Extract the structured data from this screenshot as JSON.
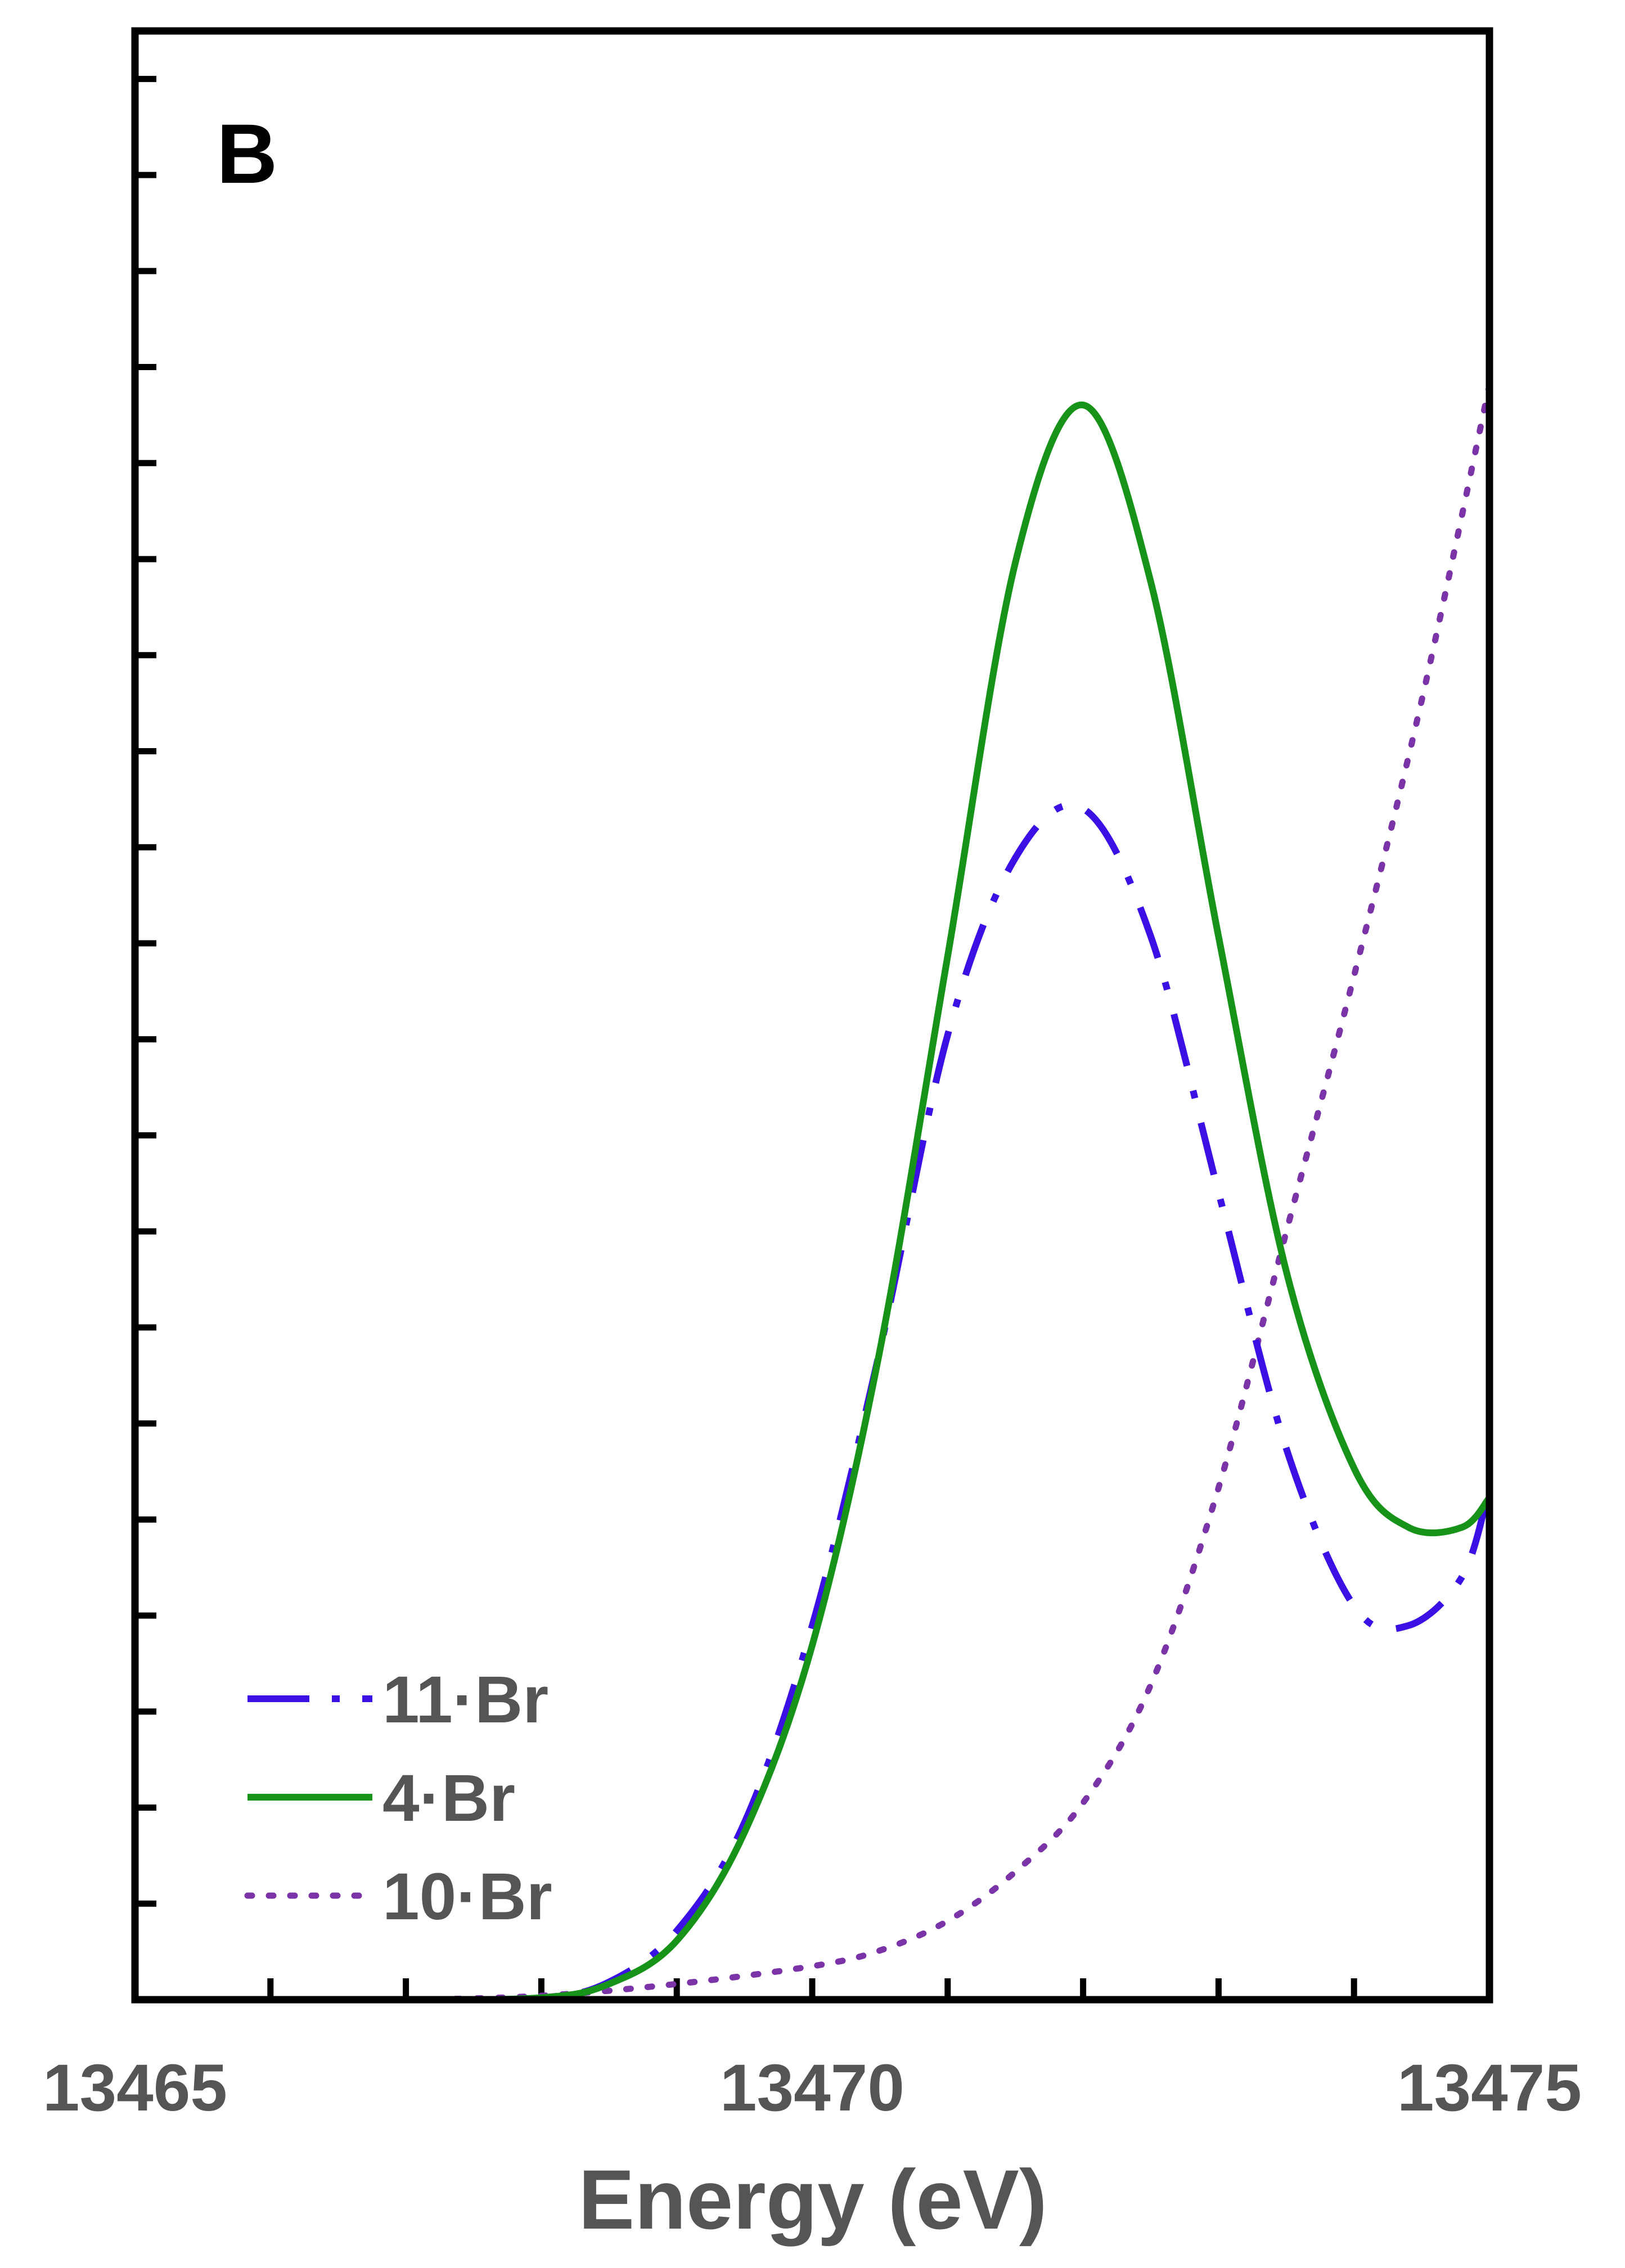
{
  "chart_data": {
    "type": "line",
    "panel_label": "B",
    "xlabel": "Energy (eV)",
    "ylabel": "",
    "xlim": [
      13465,
      13475
    ],
    "ylim": [
      0,
      1.0
    ],
    "x_ticks": [
      13465,
      13470,
      13475
    ],
    "x_tick_labels": [
      "13465",
      "13470",
      "13475"
    ],
    "x_minor_ticks": [
      13466,
      13467,
      13468,
      13469,
      13471,
      13472,
      13473,
      13474
    ],
    "y_tick_count": 20,
    "y_tick_labels": "none",
    "grid": false,
    "legend": {
      "position": "bottom-left"
    },
    "series": [
      {
        "name": "11·Br",
        "color": "#3a10e5",
        "style": "dash-dot",
        "x": [
          13465,
          13466,
          13467,
          13468,
          13468.5,
          13469,
          13469.5,
          13470,
          13470.5,
          13471,
          13471.5,
          13472,
          13472.5,
          13473,
          13473.5,
          13474,
          13474.4,
          13474.8,
          13475
        ],
        "y": [
          0,
          0,
          0,
          0.001,
          0.009,
          0.035,
          0.09,
          0.19,
          0.33,
          0.49,
          0.58,
          0.605,
          0.54,
          0.41,
          0.28,
          0.2,
          0.19,
          0.215,
          0.26
        ]
      },
      {
        "name": "4·Br",
        "color": "#17931a",
        "style": "solid",
        "x": [
          13465,
          13466,
          13467,
          13468,
          13468.5,
          13469,
          13469.5,
          13470,
          13470.5,
          13471,
          13471.5,
          13472,
          13472.5,
          13473,
          13473.5,
          13474,
          13474.4,
          13474.8,
          13475
        ],
        "y": [
          0,
          0,
          0,
          0.001,
          0.008,
          0.03,
          0.085,
          0.18,
          0.33,
          0.53,
          0.73,
          0.81,
          0.72,
          0.54,
          0.37,
          0.27,
          0.24,
          0.24,
          0.255
        ]
      },
      {
        "name": "10·Br",
        "color": "#7a34a8",
        "style": "dotted",
        "x": [
          13465,
          13466,
          13467,
          13468,
          13469,
          13470,
          13470.5,
          13471,
          13471.5,
          13472,
          13472.5,
          13473,
          13473.5,
          13474,
          13474.5,
          13475
        ],
        "y": [
          0,
          0,
          0,
          0.002,
          0.008,
          0.017,
          0.025,
          0.04,
          0.065,
          0.1,
          0.16,
          0.26,
          0.39,
          0.52,
          0.66,
          0.82
        ]
      }
    ]
  }
}
